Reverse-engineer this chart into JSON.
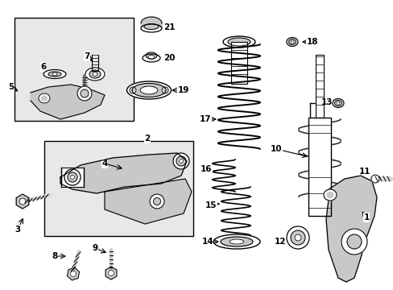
{
  "bg_color": "#ffffff",
  "lc": "#000000",
  "gc": "#909090",
  "lgc": "#c8c8c8",
  "fig_width": 4.89,
  "fig_height": 3.6,
  "dpi": 100
}
